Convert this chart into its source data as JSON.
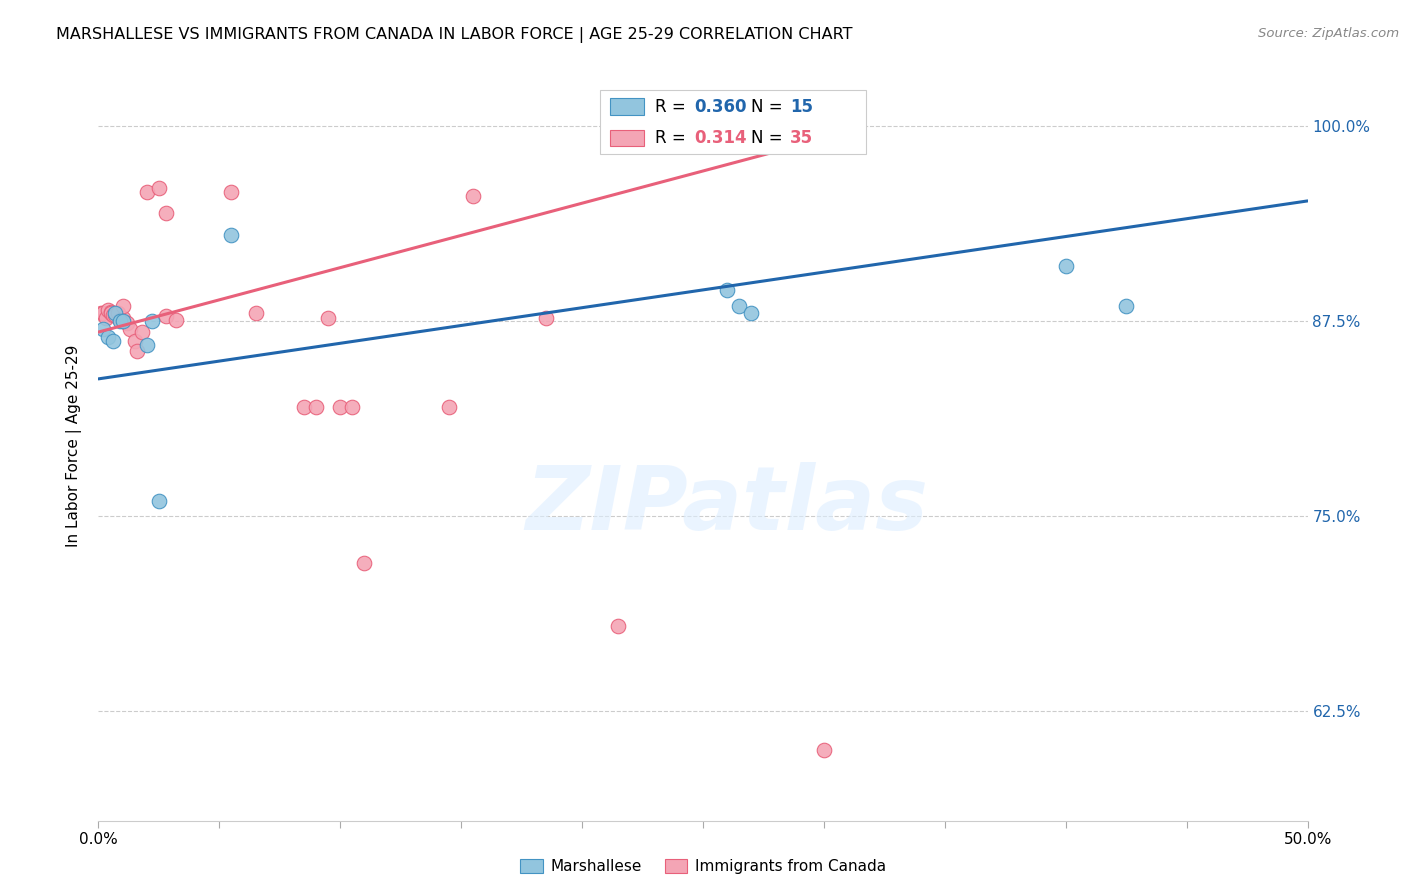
{
  "title": "MARSHALLESE VS IMMIGRANTS FROM CANADA IN LABOR FORCE | AGE 25-29 CORRELATION CHART",
  "source": "Source: ZipAtlas.com",
  "ylabel": "In Labor Force | Age 25-29",
  "xlim": [
    0.0,
    0.5
  ],
  "ylim": [
    0.555,
    1.035
  ],
  "xtick_positions": [
    0.0,
    0.05,
    0.1,
    0.15,
    0.2,
    0.25,
    0.3,
    0.35,
    0.4,
    0.45,
    0.5
  ],
  "xtick_labels": [
    "0.0%",
    "",
    "",
    "",
    "",
    "",
    "",
    "",
    "",
    "",
    "50.0%"
  ],
  "ytick_positions": [
    1.0,
    0.875,
    0.75,
    0.625
  ],
  "ytick_labels": [
    "100.0%",
    "87.5%",
    "75.0%",
    "62.5%"
  ],
  "blue_R": 0.36,
  "blue_N": 15,
  "pink_R": 0.314,
  "pink_N": 35,
  "blue_scatter_color": "#92c5de",
  "blue_scatter_edge": "#4393c3",
  "pink_scatter_color": "#f4a5b5",
  "pink_scatter_edge": "#e8607a",
  "blue_line_color": "#2166ac",
  "pink_line_color": "#e8607a",
  "watermark_text": "ZIPatlas",
  "blue_points_x": [
    0.002,
    0.004,
    0.006,
    0.007,
    0.009,
    0.01,
    0.02,
    0.022,
    0.025,
    0.055,
    0.26,
    0.265,
    0.27,
    0.4,
    0.425
  ],
  "blue_points_y": [
    0.87,
    0.865,
    0.862,
    0.88,
    0.875,
    0.875,
    0.86,
    0.875,
    0.76,
    0.93,
    0.895,
    0.885,
    0.88,
    0.91,
    0.885
  ],
  "pink_points_x": [
    0.001,
    0.002,
    0.003,
    0.004,
    0.005,
    0.005,
    0.006,
    0.007,
    0.008,
    0.009,
    0.01,
    0.01,
    0.012,
    0.013,
    0.015,
    0.016,
    0.018,
    0.02,
    0.025,
    0.028,
    0.028,
    0.032,
    0.055,
    0.065,
    0.085,
    0.09,
    0.095,
    0.1,
    0.105,
    0.11,
    0.145,
    0.155,
    0.185,
    0.215,
    0.3
  ],
  "pink_points_y": [
    0.88,
    0.88,
    0.877,
    0.882,
    0.881,
    0.88,
    0.879,
    0.879,
    0.88,
    0.876,
    0.877,
    0.885,
    0.874,
    0.87,
    0.862,
    0.856,
    0.868,
    0.958,
    0.96,
    0.944,
    0.878,
    0.876,
    0.958,
    0.88,
    0.82,
    0.82,
    0.877,
    0.82,
    0.82,
    0.72,
    0.82,
    0.955,
    0.877,
    0.68,
    0.6
  ],
  "blue_line_x": [
    0.0,
    0.5
  ],
  "blue_line_y": [
    0.838,
    0.952
  ],
  "pink_line_x": [
    0.0,
    0.315
  ],
  "pink_line_y": [
    0.868,
    0.998
  ]
}
